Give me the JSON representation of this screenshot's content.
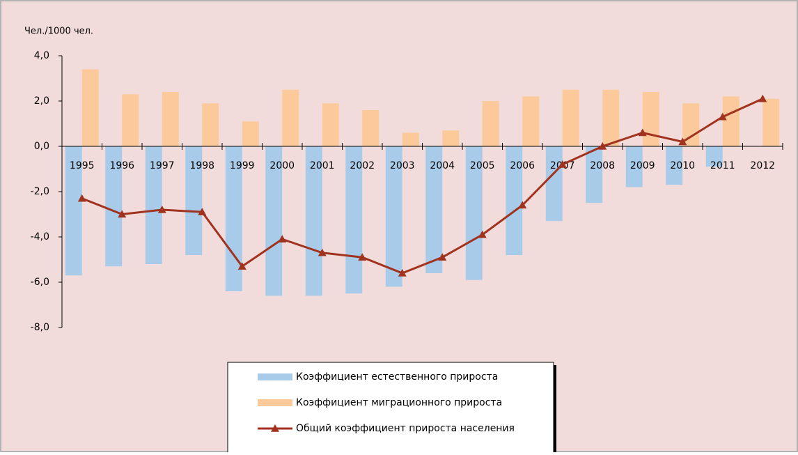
{
  "chart_data": {
    "type": "bar-line",
    "y_label": "Чел./1000 чел.",
    "categories": [
      "1995",
      "1996",
      "1997",
      "1998",
      "1999",
      "2000",
      "2001",
      "2002",
      "2003",
      "2004",
      "2005",
      "2006",
      "2007",
      "2008",
      "2009",
      "2010",
      "2011",
      "2012"
    ],
    "series": [
      {
        "name": "Коэффициент естественного прироста",
        "type": "bar",
        "color": "#a7cbe9",
        "values": [
          -5.7,
          -5.3,
          -5.2,
          -4.8,
          -6.4,
          -6.6,
          -6.6,
          -6.5,
          -6.2,
          -5.6,
          -5.9,
          -4.8,
          -3.3,
          -2.5,
          -1.8,
          -1.7,
          -0.9,
          0
        ]
      },
      {
        "name": "Коэффициент миграционного прироста",
        "type": "bar",
        "color": "#fbc99a",
        "values": [
          3.4,
          2.3,
          2.4,
          1.9,
          1.1,
          2.5,
          1.9,
          1.6,
          0.6,
          0.7,
          2.0,
          2.2,
          2.5,
          2.5,
          2.4,
          1.9,
          2.2,
          2.1
        ]
      },
      {
        "name": "Общий коэффициент прироста населения",
        "type": "line",
        "color": "#a0321e",
        "values": [
          -2.3,
          -3.0,
          -2.8,
          -2.9,
          -5.3,
          -4.1,
          -4.7,
          -4.9,
          -5.6,
          -4.9,
          -3.9,
          -2.6,
          -0.8,
          0.0,
          0.6,
          0.2,
          1.3,
          2.1
        ]
      }
    ],
    "ylim": [
      -8,
      4
    ],
    "yticks": [
      {
        "value": -8,
        "label": "-8,0"
      },
      {
        "value": -6,
        "label": "-6,0"
      },
      {
        "value": -4,
        "label": "-4,0"
      },
      {
        "value": -2,
        "label": "-2,0"
      },
      {
        "value": 0,
        "label": "0,0"
      },
      {
        "value": 2,
        "label": "2,0"
      },
      {
        "value": 4,
        "label": "4,0"
      }
    ],
    "legend": "bottom"
  }
}
